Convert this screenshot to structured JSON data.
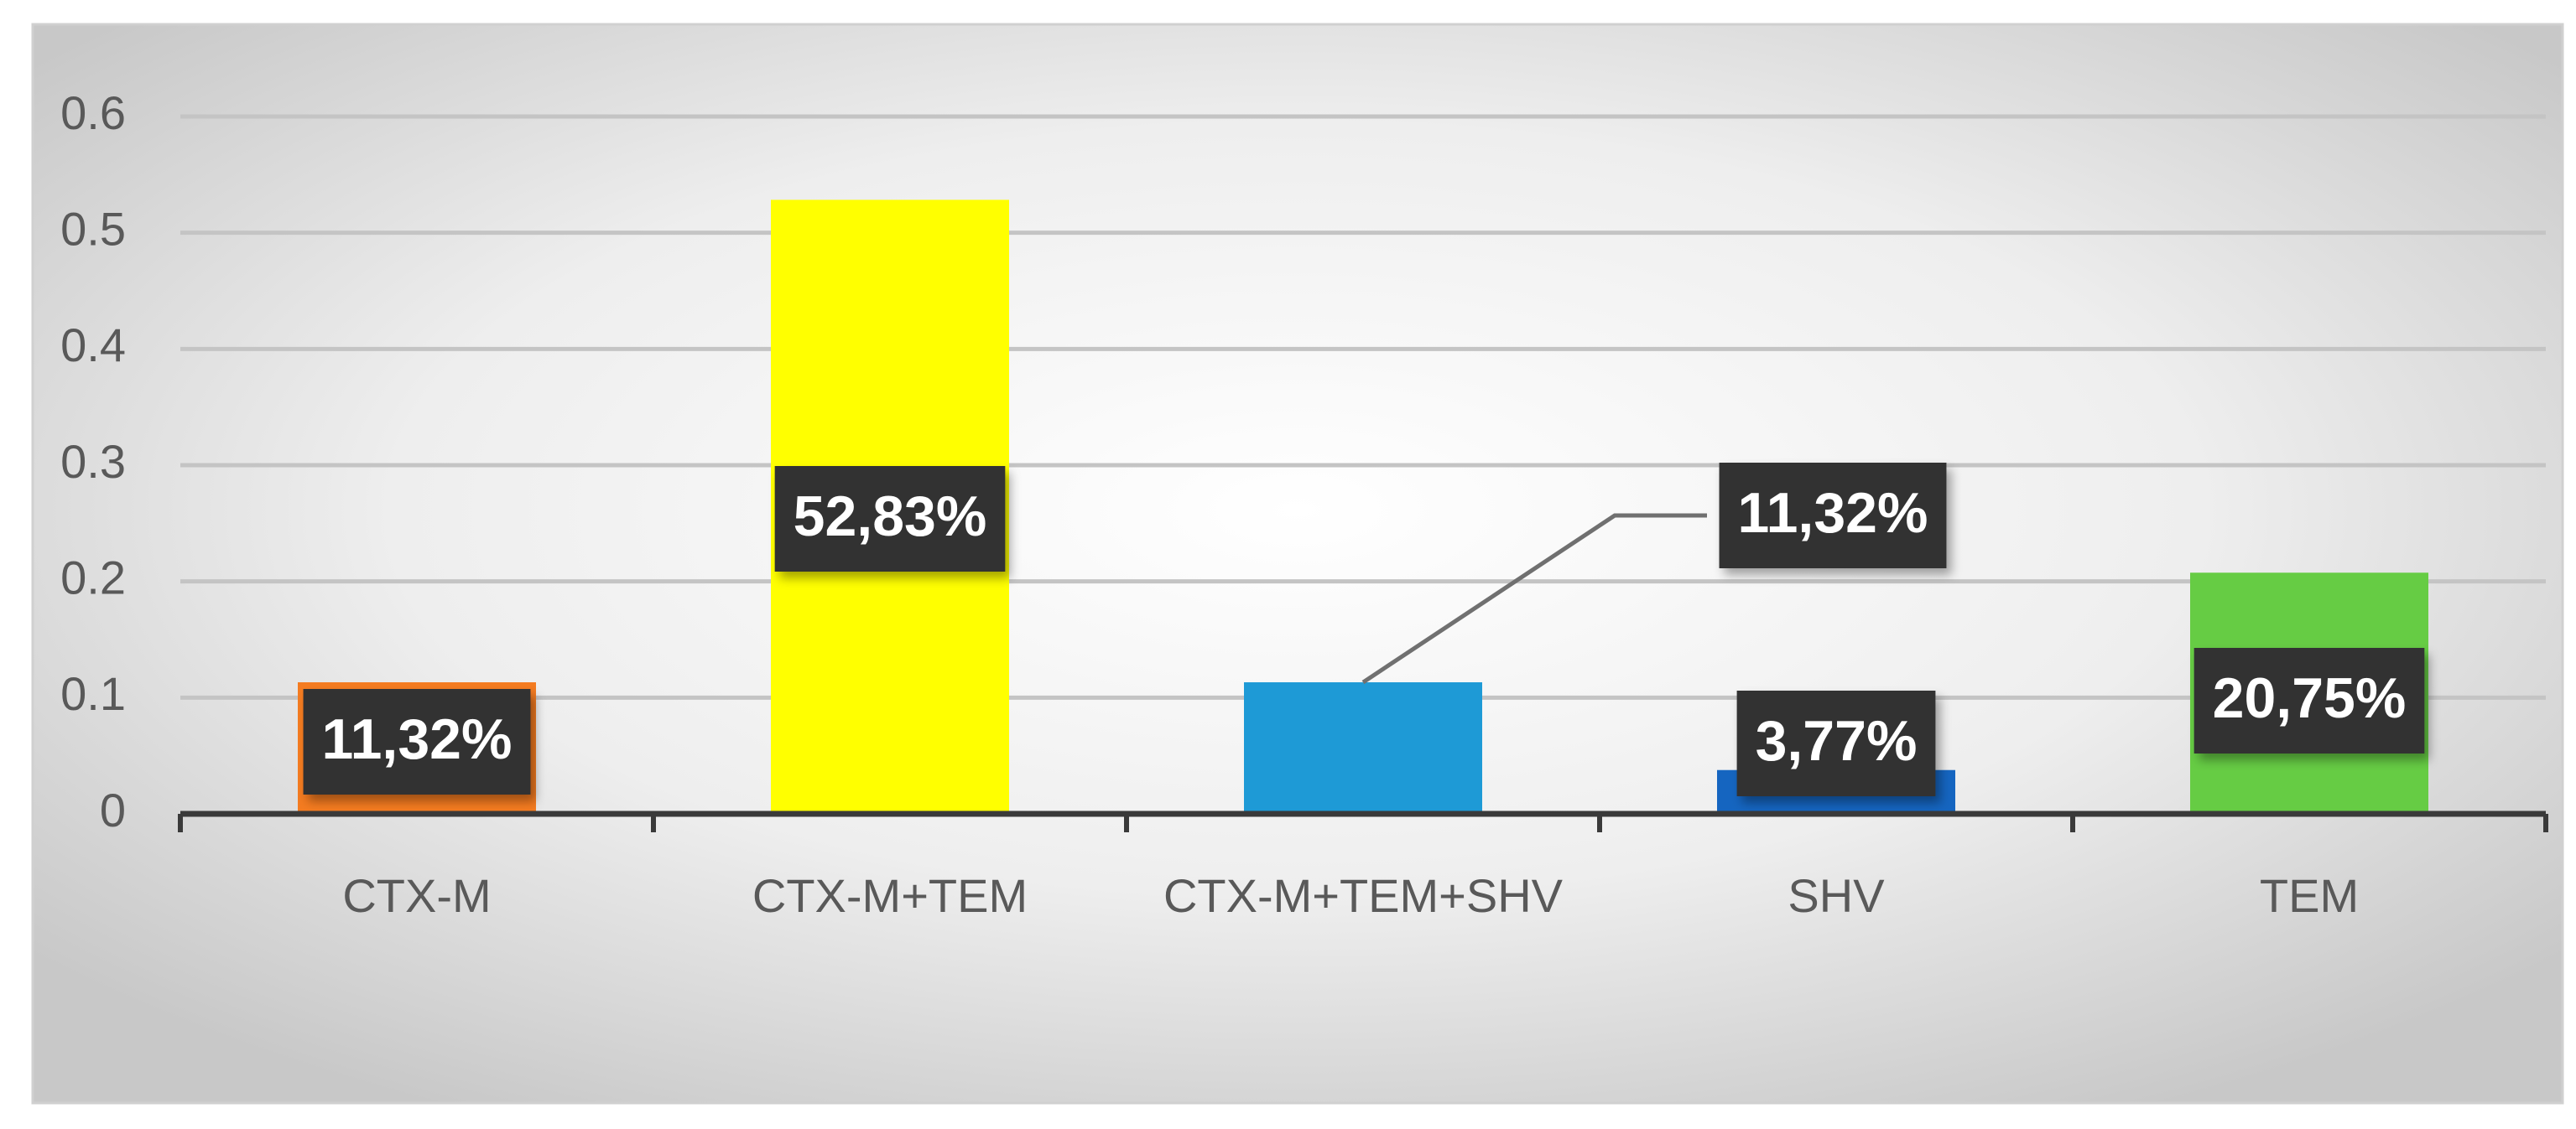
{
  "chart_data": {
    "type": "bar",
    "categories": [
      "CTX-M",
      "CTX-M+TEM",
      "CTX-M+TEM+SHV",
      "SHV",
      "TEM"
    ],
    "values": [
      0.1132,
      0.5283,
      0.1132,
      0.0377,
      0.2075
    ],
    "value_labels": [
      "11,32%",
      "52,83%",
      "11,32%",
      "3,77%",
      "20,75%"
    ],
    "colors": [
      "#f47b20",
      "#ffff00",
      "#1e9ad6",
      "#1565c0",
      "#66cc44"
    ],
    "ylim": [
      0,
      0.6
    ],
    "yticks": [
      0,
      0.1,
      0.2,
      0.3,
      0.4,
      0.5,
      0.6
    ],
    "grid": true
  }
}
